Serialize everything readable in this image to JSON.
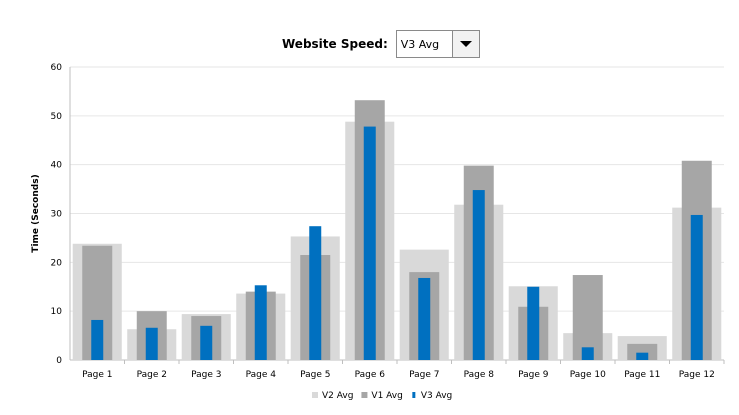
{
  "control": {
    "label": "Website Speed:",
    "selected": "V3 Avg"
  },
  "chart_data": {
    "type": "bar",
    "ylabel": "Time (Seconds)",
    "xlabel": "",
    "ylim": [
      0,
      60
    ],
    "yticks": [
      0,
      10,
      20,
      30,
      40,
      50,
      60
    ],
    "grid": true,
    "legend_position": "bottom",
    "categories": [
      "Page 1",
      "Page 2",
      "Page 3",
      "Page 4",
      "Page 5",
      "Page 6",
      "Page 7",
      "Page 8",
      "Page 9",
      "Page 10",
      "Page 11",
      "Page 12"
    ],
    "series": [
      {
        "name": "V2 Avg",
        "color": "#d9d9d9",
        "values": [
          23.8,
          6.3,
          9.4,
          13.6,
          25.3,
          48.8,
          22.6,
          31.8,
          15.1,
          5.5,
          4.9,
          31.2
        ]
      },
      {
        "name": "V1 Avg",
        "color": "#a6a6a6",
        "values": [
          23.4,
          10.0,
          9.0,
          14.0,
          21.5,
          53.2,
          18.0,
          39.8,
          10.9,
          17.4,
          3.3,
          40.8
        ]
      },
      {
        "name": "V3 Avg",
        "color": "#0070c0",
        "values": [
          8.2,
          6.6,
          7.0,
          15.3,
          27.4,
          47.8,
          16.8,
          34.8,
          15.0,
          2.6,
          1.5,
          29.7
        ]
      }
    ]
  }
}
